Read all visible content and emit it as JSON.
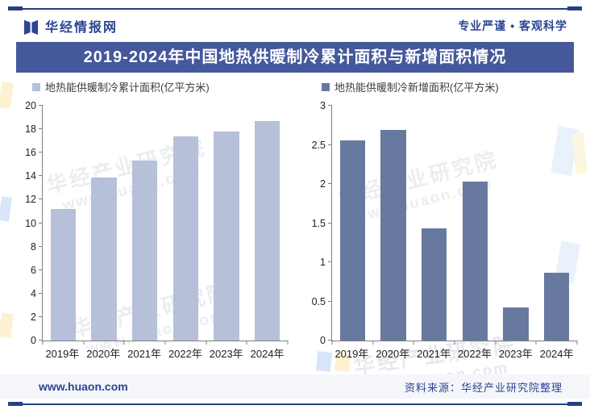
{
  "header": {
    "brand": "华经情报网",
    "slogan": "专业严谨 • 客观科学"
  },
  "title": "2019-2024年中国地热供暖制冷累计面积与新增面积情况",
  "watermark": {
    "line1": "华经产业研究院",
    "line2": "www.huaon.com"
  },
  "footer": {
    "site": "www.huaon.com",
    "source": "资料来源：华经产业研究院整理"
  },
  "colors": {
    "accent_navy": "#2b4590",
    "rule_navy": "#27417f",
    "title_bar_bg": "#45589b",
    "cumulative_bar": "#b6c0d8",
    "new_bar": "#68799f",
    "footer_bg": "#f4f6fa",
    "axis_gray": "#7f7f7f"
  },
  "chart_data": [
    {
      "type": "bar",
      "legend": "地热能供暖制冷累计面积(亿平方米)",
      "categories": [
        "2019年",
        "2020年",
        "2021年",
        "2022年",
        "2023年",
        "2024年"
      ],
      "values": [
        11.2,
        13.9,
        15.3,
        17.4,
        17.8,
        18.7
      ],
      "ylim": [
        0,
        20
      ],
      "ytick_step": 2,
      "yticks": [
        0,
        2,
        4,
        6,
        8,
        10,
        12,
        14,
        16,
        18,
        20
      ],
      "color": "#b6c0d8",
      "grid": false,
      "legend_position": "top-left"
    },
    {
      "type": "bar",
      "legend": "地热能供暖制冷新增面积(亿平方米)",
      "categories": [
        "2019年",
        "2020年",
        "2021年",
        "2022年",
        "2023年",
        "2024年"
      ],
      "values": [
        2.56,
        2.69,
        1.43,
        2.03,
        0.42,
        0.87
      ],
      "ylim": [
        0,
        3
      ],
      "ytick_step": 0.5,
      "yticks": [
        0,
        0.5,
        1,
        1.5,
        2,
        2.5,
        3
      ],
      "color": "#68799f",
      "grid": false,
      "legend_position": "top-left"
    }
  ]
}
